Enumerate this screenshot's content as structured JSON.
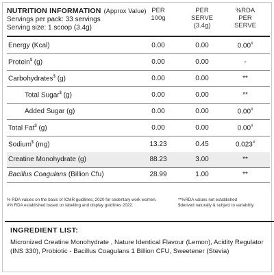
{
  "header": {
    "title": "NUTRITION INFORMATION",
    "approx": "(Approx Value)",
    "servings_per_pack": "Servings per pack: 33 servings",
    "serving_size": "Serving size: 1 scoop (3.4g)"
  },
  "columns": {
    "per_100g": [
      "PER",
      "100g"
    ],
    "per_serve": [
      "PER",
      "SERVE",
      "(3.4g)"
    ],
    "rda": [
      "%RDA",
      "PER",
      "SERVE"
    ]
  },
  "rows": [
    {
      "name": "Energy (Kcal)",
      "per_100g": "0.00",
      "per_serve": "0.00",
      "rda": "0.00#"
    },
    {
      "name": "Protein$ (g)",
      "per_100g": "0.00",
      "per_serve": "0.00",
      "rda": "-"
    },
    {
      "name": "Carbohydrates$ (g)",
      "per_100g": "0.00",
      "per_serve": "0.00",
      "rda": "**"
    },
    {
      "name": "Total Sugar$ (g)",
      "per_100g": "0.00",
      "per_serve": "0.00",
      "rda": "**"
    },
    {
      "name": "Added Sugar (g)",
      "per_100g": "0.00",
      "per_serve": "0.00",
      "rda": "0.00#"
    },
    {
      "name": "Total Fat$ (g)",
      "per_100g": "0.00",
      "per_serve": "0.00",
      "rda": "0.00#"
    },
    {
      "name": "Sodium$ (mg)",
      "per_100g": "13.23",
      "per_serve": "0.45",
      "rda": "0.023#"
    },
    {
      "name": "Creatine Monohydrate (g)",
      "per_100g": "88.23",
      "per_serve": "3.00",
      "rda": "**"
    },
    {
      "name": "Bacillus Coagulans (Billion Cfu)",
      "per_100g": "28.99",
      "per_serve": "1.00",
      "rda": "**"
    }
  ],
  "footnotes": {
    "left_1": "% RDA values on the basis of ICMR guidlines, 2020 for sedentary work women.",
    "left_2": "#% RDA established based on labelling and display guidlines 2022.",
    "right_1": "**%RDA values not established",
    "right_2": "$derived naturally & subject to variability"
  },
  "ingredients": {
    "title": "INGREDIENT LIST:",
    "text": "Micronized Creatine Monohydrate , Nature Identical Flavour (Lemon), Acidity Regulator (INS 330), Probiotic - Bacillus Coagulans 1 Billion CFU, Sweetener (Stevia)"
  }
}
